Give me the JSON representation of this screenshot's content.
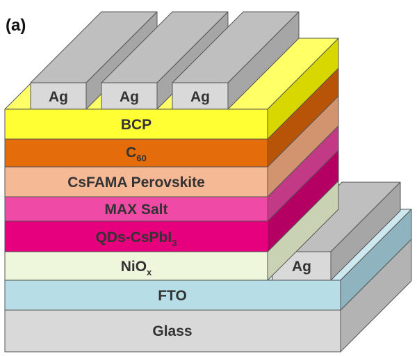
{
  "panel_label": "(a)",
  "layers": [
    {
      "id": "glass",
      "label": "Glass",
      "front": "#d9d9d9",
      "side": "#b3b3b3",
      "top": "#e6e6e6"
    },
    {
      "id": "fto",
      "label": "FTO",
      "front": "#b7dde7",
      "side": "#8fb4c0",
      "top": "#cde8ef"
    },
    {
      "id": "nio",
      "label_main": "NiO",
      "label_sub": "x",
      "front": "#eef7dc",
      "side": "#c9d3b4",
      "top": "#f4fae8"
    },
    {
      "id": "qds",
      "label_main": "QDs-CsPbI",
      "label_sub": "3",
      "front": "#e6007e",
      "side": "#b40062",
      "top": "#f04aa6"
    },
    {
      "id": "max",
      "label": "MAX Salt",
      "front": "#ee4aa6",
      "side": "#c23a86",
      "top": "#f6a0cf",
      "bevel": "#f8d2e7"
    },
    {
      "id": "csfama",
      "label": "CsFAMA Perovskite",
      "front": "#f5b996",
      "side": "#d2936f",
      "top": "#f9d2bb"
    },
    {
      "id": "c60",
      "label_main": "C",
      "label_sub": "60",
      "front": "#e46c0a",
      "side": "#b85407",
      "top": "#f0a060"
    },
    {
      "id": "bcp",
      "label": "BCP",
      "front": "#ffff33",
      "side": "#d8d800",
      "top": "#ffff66"
    }
  ],
  "electrodes": {
    "top_labels": [
      "Ag",
      "Ag",
      "Ag"
    ],
    "side_label": "Ag",
    "front": "#d9d9d9",
    "side": "#a6a6a6",
    "top": "#bfbfbf"
  }
}
